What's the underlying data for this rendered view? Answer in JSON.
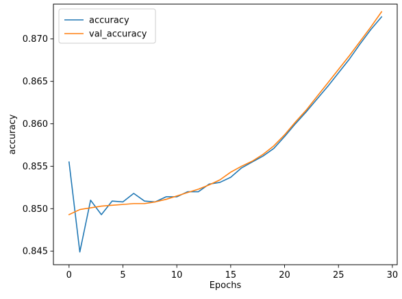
{
  "chart_data": {
    "type": "line",
    "title": "",
    "xlabel": "Epochs",
    "ylabel": "accuracy",
    "xlim": [
      -1.45,
      30.45
    ],
    "ylim": [
      0.8434,
      0.8741
    ],
    "x_ticks": [
      0,
      5,
      10,
      15,
      20,
      25,
      30
    ],
    "x_tick_labels": [
      "0",
      "5",
      "10",
      "15",
      "20",
      "25",
      "30"
    ],
    "y_ticks": [
      0.845,
      0.85,
      0.855,
      0.86,
      0.865,
      0.87
    ],
    "y_tick_labels": [
      "0.845",
      "0.850",
      "0.855",
      "0.860",
      "0.865",
      "0.870"
    ],
    "grid": false,
    "legend_position": "top-left",
    "x": [
      0,
      1,
      2,
      3,
      4,
      5,
      6,
      7,
      8,
      9,
      10,
      11,
      12,
      13,
      14,
      15,
      16,
      17,
      18,
      19,
      20,
      21,
      22,
      23,
      24,
      25,
      26,
      27,
      28,
      29
    ],
    "series": [
      {
        "name": "accuracy",
        "color": "#1f77b4",
        "values": [
          0.8555,
          0.8449,
          0.851,
          0.8493,
          0.8509,
          0.8508,
          0.8518,
          0.8509,
          0.8508,
          0.8514,
          0.8514,
          0.852,
          0.852,
          0.8529,
          0.8531,
          0.8537,
          0.8548,
          0.8555,
          0.8562,
          0.8571,
          0.8585,
          0.86,
          0.8614,
          0.8629,
          0.8644,
          0.866,
          0.8676,
          0.8694,
          0.8711,
          0.8726
        ]
      },
      {
        "name": "val_accuracy",
        "color": "#ff7f0e",
        "values": [
          0.8493,
          0.8499,
          0.8501,
          0.8503,
          0.8504,
          0.8505,
          0.8506,
          0.8506,
          0.8508,
          0.8511,
          0.8515,
          0.8519,
          0.8523,
          0.8528,
          0.8534,
          0.8543,
          0.855,
          0.8556,
          0.8564,
          0.8574,
          0.8587,
          0.8602,
          0.8616,
          0.8632,
          0.8648,
          0.8664,
          0.868,
          0.8697,
          0.8714,
          0.8732
        ]
      }
    ]
  }
}
